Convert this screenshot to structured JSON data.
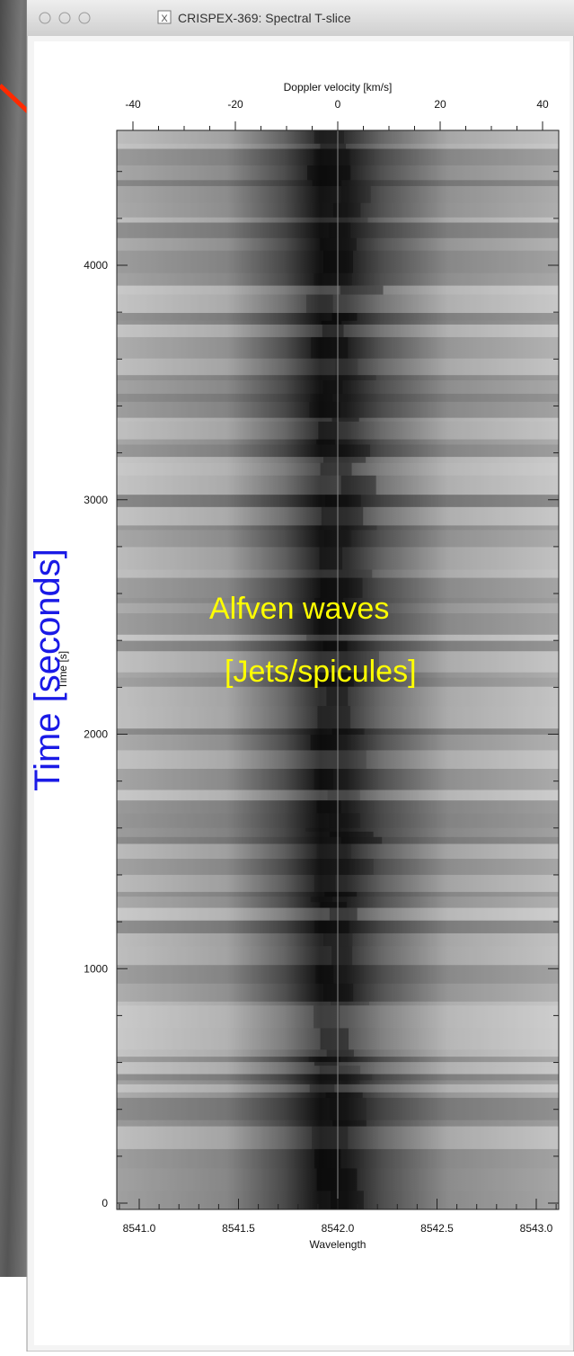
{
  "window": {
    "title": "CRISPEX-369: Spectral T-slice"
  },
  "plot": {
    "top_axis": {
      "label": "Doppler velocity [km/s]",
      "ticks": [
        "-40",
        "-20",
        "0",
        "20",
        "40"
      ]
    },
    "bottom_axis": {
      "label": "Wavelength",
      "ticks": [
        "8541.0",
        "8541.5",
        "8542.0",
        "8542.5",
        "8543.0"
      ]
    },
    "left_axis": {
      "label": "Time [s]",
      "ticks": [
        "0",
        "1000",
        "2000",
        "3000",
        "4000"
      ]
    }
  },
  "annotations": {
    "y_label": "Time [seconds]",
    "line1": "Alfven waves",
    "line2": "[Jets/spicules]"
  }
}
